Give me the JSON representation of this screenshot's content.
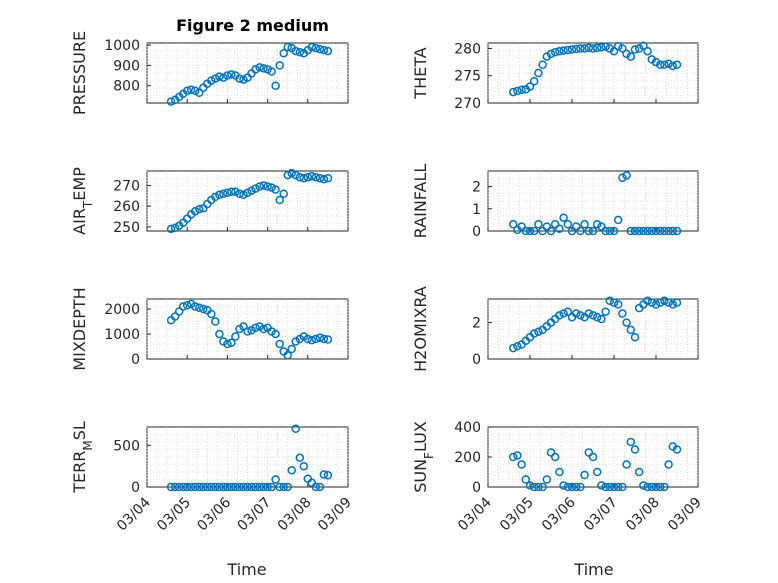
{
  "chart_data": [
    {
      "type": "scatter",
      "title": "Figure 2 medium",
      "ylabel": "PRESSURE",
      "ylim": [
        715,
        1010
      ],
      "yticks": [
        800,
        900,
        1000
      ],
      "xlim": [
        "03/04",
        "03/09"
      ],
      "xticks": [
        "03/04",
        "03/05",
        "03/06",
        "03/07",
        "03/08",
        "03/09"
      ],
      "x": [
        4.6,
        4.7,
        4.8,
        4.9,
        5.0,
        5.1,
        5.2,
        5.3,
        5.4,
        5.5,
        5.6,
        5.7,
        5.8,
        5.9,
        6.0,
        6.1,
        6.2,
        6.3,
        6.4,
        6.5,
        6.6,
        6.7,
        6.8,
        6.9,
        7.0,
        7.1,
        7.2,
        7.3,
        7.4,
        7.5,
        7.6,
        7.7,
        7.8,
        7.9,
        8.0,
        8.1,
        8.2,
        8.3,
        8.4,
        8.5
      ],
      "y": [
        722,
        730,
        745,
        760,
        775,
        780,
        775,
        765,
        790,
        810,
        825,
        835,
        845,
        840,
        850,
        855,
        850,
        835,
        830,
        840,
        860,
        880,
        890,
        885,
        880,
        870,
        800,
        900,
        960,
        990,
        985,
        970,
        965,
        960,
        975,
        990,
        985,
        980,
        975,
        970
      ]
    },
    {
      "type": "scatter",
      "title": "",
      "ylabel": "THETA",
      "ylim": [
        270,
        281
      ],
      "yticks": [
        270,
        275,
        280
      ],
      "xlim": [
        "03/04",
        "03/09"
      ],
      "xticks": [
        "03/04",
        "03/05",
        "03/06",
        "03/07",
        "03/08",
        "03/09"
      ],
      "x": [
        4.6,
        4.7,
        4.8,
        4.9,
        5.0,
        5.1,
        5.2,
        5.3,
        5.4,
        5.5,
        5.6,
        5.7,
        5.8,
        5.9,
        6.0,
        6.1,
        6.2,
        6.3,
        6.4,
        6.5,
        6.6,
        6.7,
        6.8,
        6.9,
        7.0,
        7.1,
        7.2,
        7.3,
        7.4,
        7.5,
        7.6,
        7.7,
        7.8,
        7.9,
        8.0,
        8.1,
        8.2,
        8.3,
        8.4,
        8.5
      ],
      "y": [
        272.0,
        272.2,
        272.4,
        272.5,
        273.0,
        274.0,
        275.5,
        277.0,
        278.5,
        279.0,
        279.3,
        279.5,
        279.6,
        279.7,
        279.8,
        279.9,
        280.0,
        280.0,
        280.1,
        280.0,
        280.1,
        280.2,
        280.3,
        280.0,
        279.5,
        280.4,
        280.0,
        279.0,
        278.5,
        279.8,
        280.0,
        280.5,
        279.5,
        278.0,
        277.5,
        277.0,
        277.0,
        277.2,
        276.8,
        277.0
      ]
    },
    {
      "type": "scatter",
      "title": "",
      "ylabel": "AIR_TEMP",
      "ylim": [
        248,
        277
      ],
      "yticks": [
        250,
        260,
        270
      ],
      "xlim": [
        "03/04",
        "03/09"
      ],
      "xticks": [
        "03/04",
        "03/05",
        "03/06",
        "03/07",
        "03/08",
        "03/09"
      ],
      "x": [
        4.6,
        4.7,
        4.8,
        4.9,
        5.0,
        5.1,
        5.2,
        5.3,
        5.4,
        5.5,
        5.6,
        5.7,
        5.8,
        5.9,
        6.0,
        6.1,
        6.2,
        6.3,
        6.4,
        6.5,
        6.6,
        6.7,
        6.8,
        6.9,
        7.0,
        7.1,
        7.2,
        7.3,
        7.4,
        7.5,
        7.6,
        7.7,
        7.8,
        7.9,
        8.0,
        8.1,
        8.2,
        8.3,
        8.4,
        8.5
      ],
      "y": [
        249.0,
        249.5,
        250.5,
        252.0,
        254.0,
        256.0,
        257.5,
        258.5,
        259.0,
        261.0,
        263.0,
        264.5,
        265.5,
        266.0,
        266.5,
        267.0,
        267.0,
        266.0,
        265.5,
        266.5,
        267.5,
        268.5,
        269.5,
        270.0,
        269.5,
        269.0,
        268.0,
        263.0,
        266.0,
        275.0,
        276.0,
        275.0,
        274.0,
        273.5,
        274.0,
        274.5,
        274.0,
        273.5,
        273.0,
        273.5
      ]
    },
    {
      "type": "scatter",
      "title": "",
      "ylabel": "RAINFALL",
      "ylim": [
        0,
        2.7
      ],
      "yticks": [
        0,
        1,
        2
      ],
      "xlim": [
        "03/04",
        "03/09"
      ],
      "xticks": [
        "03/04",
        "03/05",
        "03/06",
        "03/07",
        "03/08",
        "03/09"
      ],
      "x": [
        4.6,
        4.7,
        4.8,
        4.9,
        5.0,
        5.1,
        5.2,
        5.3,
        5.4,
        5.5,
        5.6,
        5.7,
        5.8,
        5.9,
        6.0,
        6.1,
        6.2,
        6.3,
        6.4,
        6.5,
        6.6,
        6.7,
        6.8,
        6.9,
        7.0,
        7.1,
        7.2,
        7.3,
        7.4,
        7.5,
        7.6,
        7.7,
        7.8,
        7.9,
        8.0,
        8.1,
        8.2,
        8.3,
        8.4,
        8.5
      ],
      "y": [
        0.3,
        0.05,
        0.2,
        0,
        0,
        0,
        0.3,
        0,
        0.2,
        0,
        0.3,
        0.1,
        0.6,
        0.3,
        0,
        0.2,
        0,
        0.3,
        0,
        0,
        0.3,
        0.2,
        0,
        0,
        0,
        0.5,
        2.4,
        2.5,
        0,
        0,
        0,
        0,
        0,
        0,
        0,
        0,
        0,
        0,
        0,
        0
      ]
    },
    {
      "type": "scatter",
      "title": "",
      "ylabel": "MIXDEPTH",
      "ylim": [
        0,
        2400
      ],
      "yticks": [
        0,
        1000,
        2000
      ],
      "xlim": [
        "03/04",
        "03/09"
      ],
      "xticks": [
        "03/04",
        "03/05",
        "03/06",
        "03/07",
        "03/08",
        "03/09"
      ],
      "x": [
        4.6,
        4.7,
        4.8,
        4.9,
        5.0,
        5.1,
        5.2,
        5.3,
        5.4,
        5.5,
        5.6,
        5.7,
        5.8,
        5.9,
        6.0,
        6.1,
        6.2,
        6.3,
        6.4,
        6.5,
        6.6,
        6.7,
        6.8,
        6.9,
        7.0,
        7.1,
        7.2,
        7.3,
        7.4,
        7.5,
        7.6,
        7.7,
        7.8,
        7.9,
        8.0,
        8.1,
        8.2,
        8.3,
        8.4,
        8.5
      ],
      "y": [
        1550,
        1700,
        1900,
        2100,
        2150,
        2200,
        2100,
        2050,
        2000,
        1950,
        1800,
        1500,
        1000,
        700,
        600,
        650,
        900,
        1200,
        1300,
        1100,
        1150,
        1250,
        1300,
        1200,
        1250,
        1100,
        1000,
        600,
        300,
        150,
        400,
        700,
        800,
        900,
        800,
        750,
        800,
        850,
        800,
        780
      ]
    },
    {
      "type": "scatter",
      "title": "",
      "ylabel": "H2OMIXRA",
      "ylim": [
        0,
        3.3
      ],
      "yticks": [
        0,
        2
      ],
      "xlim": [
        "03/04",
        "03/09"
      ],
      "xticks": [
        "03/04",
        "03/05",
        "03/06",
        "03/07",
        "03/08",
        "03/09"
      ],
      "x": [
        4.6,
        4.7,
        4.8,
        4.9,
        5.0,
        5.1,
        5.2,
        5.3,
        5.4,
        5.5,
        5.6,
        5.7,
        5.8,
        5.9,
        6.0,
        6.1,
        6.2,
        6.3,
        6.4,
        6.5,
        6.6,
        6.7,
        6.8,
        6.9,
        7.0,
        7.1,
        7.2,
        7.3,
        7.4,
        7.5,
        7.6,
        7.7,
        7.8,
        7.9,
        8.0,
        8.1,
        8.2,
        8.3,
        8.4,
        8.5
      ],
      "y": [
        0.6,
        0.7,
        0.8,
        1.0,
        1.2,
        1.4,
        1.5,
        1.6,
        1.8,
        2.0,
        2.2,
        2.4,
        2.5,
        2.6,
        2.3,
        2.5,
        2.4,
        2.3,
        2.5,
        2.4,
        2.3,
        2.2,
        2.6,
        3.2,
        3.1,
        3.0,
        2.5,
        2.0,
        1.6,
        1.2,
        2.8,
        3.0,
        3.2,
        3.1,
        3.0,
        3.1,
        3.2,
        3.1,
        3.0,
        3.1
      ]
    },
    {
      "type": "scatter",
      "title": "",
      "ylabel": "TERR_MSL",
      "ylim": [
        0,
        720
      ],
      "yticks": [
        0,
        500
      ],
      "xlim": [
        "03/04",
        "03/09"
      ],
      "xticks": [
        "03/04",
        "03/05",
        "03/06",
        "03/07",
        "03/08",
        "03/09"
      ],
      "x": [
        4.6,
        4.7,
        4.8,
        4.9,
        5.0,
        5.1,
        5.2,
        5.3,
        5.4,
        5.5,
        5.6,
        5.7,
        5.8,
        5.9,
        6.0,
        6.1,
        6.2,
        6.3,
        6.4,
        6.5,
        6.6,
        6.7,
        6.8,
        6.9,
        7.0,
        7.1,
        7.2,
        7.3,
        7.4,
        7.5,
        7.6,
        7.7,
        7.8,
        7.9,
        8.0,
        8.1,
        8.2,
        8.3,
        8.4,
        8.5
      ],
      "y": [
        0,
        0,
        0,
        0,
        0,
        0,
        0,
        0,
        0,
        0,
        0,
        0,
        0,
        0,
        0,
        0,
        0,
        0,
        0,
        0,
        0,
        0,
        0,
        0,
        0,
        0,
        90,
        0,
        0,
        0,
        200,
        700,
        350,
        250,
        100,
        50,
        0,
        0,
        150,
        140
      ]
    },
    {
      "type": "scatter",
      "title": "",
      "ylabel": "SUN_FLUX",
      "ylim": [
        0,
        400
      ],
      "yticks": [
        0,
        200,
        400
      ],
      "xlim": [
        "03/04",
        "03/09"
      ],
      "xticks": [
        "03/04",
        "03/05",
        "03/06",
        "03/07",
        "03/08",
        "03/09"
      ],
      "x": [
        4.6,
        4.7,
        4.8,
        4.9,
        5.0,
        5.1,
        5.2,
        5.3,
        5.4,
        5.5,
        5.6,
        5.7,
        5.8,
        5.9,
        6.0,
        6.1,
        6.2,
        6.3,
        6.4,
        6.5,
        6.6,
        6.7,
        6.8,
        6.9,
        7.0,
        7.1,
        7.2,
        7.3,
        7.4,
        7.5,
        7.6,
        7.7,
        7.8,
        7.9,
        8.0,
        8.1,
        8.2,
        8.3,
        8.4,
        8.5
      ],
      "y": [
        200,
        210,
        150,
        50,
        10,
        0,
        0,
        0,
        50,
        230,
        200,
        100,
        10,
        0,
        0,
        0,
        0,
        80,
        230,
        200,
        100,
        10,
        0,
        0,
        0,
        0,
        0,
        150,
        300,
        250,
        100,
        10,
        0,
        0,
        0,
        0,
        0,
        150,
        270,
        250
      ]
    }
  ],
  "common": {
    "xlabel": "Time"
  },
  "colors": {
    "marker": "#0072bd",
    "axis": "#262626",
    "grid": "#c8c8c8"
  }
}
